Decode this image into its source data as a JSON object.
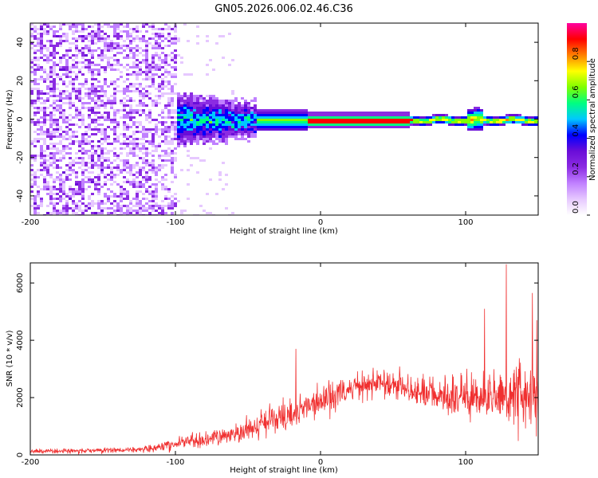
{
  "title": "GN05.2026.006.02.46.C36",
  "chart_data": [
    {
      "type": "heatmap",
      "xlabel": "Height of straight line (km)",
      "ylabel": "Frequency (Hz)",
      "xlim": [
        -200,
        150
      ],
      "ylim": [
        -50,
        50
      ],
      "xticks": [
        -200,
        -100,
        0,
        100
      ],
      "yticks": [
        -40,
        -20,
        0,
        20,
        40
      ],
      "ridge_frequency_hz": 0,
      "colorbar": {
        "label": "Normalized spectral amplitude",
        "range": [
          0,
          1
        ],
        "ticks": [
          "0.0",
          "0.2",
          "0.4",
          "0.6",
          "0.8"
        ],
        "colors": [
          "#ffffff",
          "#e6c8ff",
          "#c080ff",
          "#8b2be2",
          "#6a0dd8",
          "#0000ff",
          "#00c8ff",
          "#00ff80",
          "#80ff00",
          "#ffff00",
          "#ff8000",
          "#ff0000",
          "#ff00a0"
        ]
      }
    },
    {
      "type": "line",
      "xlabel": "Height of straight line (km)",
      "ylabel": "SNR (10 * v/v)",
      "xlim": [
        -200,
        150
      ],
      "ylim": [
        0,
        6700
      ],
      "xticks": [
        -200,
        -100,
        0,
        100
      ],
      "yticks": [
        0,
        2000,
        4000,
        6000
      ],
      "color": "#f03030",
      "envelope": {
        "x": [
          -200,
          -150,
          -120,
          -100,
          -80,
          -60,
          -45,
          -40,
          -20,
          0,
          20,
          40,
          60,
          80,
          100,
          120,
          140,
          150
        ],
        "mean": [
          120,
          150,
          200,
          400,
          550,
          700,
          950,
          1100,
          1400,
          1900,
          2300,
          2500,
          2300,
          2100,
          2000,
          2000,
          2100,
          2050
        ],
        "spread": [
          100,
          110,
          150,
          280,
          350,
          450,
          600,
          700,
          700,
          700,
          650,
          550,
          600,
          700,
          900,
          1100,
          1500,
          1700
        ]
      },
      "peaks": [
        {
          "x": 128,
          "y": 6650
        },
        {
          "x": 146,
          "y": 5650
        },
        {
          "x": -17,
          "y": 3700
        },
        {
          "x": 113,
          "y": 5100
        },
        {
          "x": 149,
          "y": 4700
        }
      ]
    }
  ]
}
